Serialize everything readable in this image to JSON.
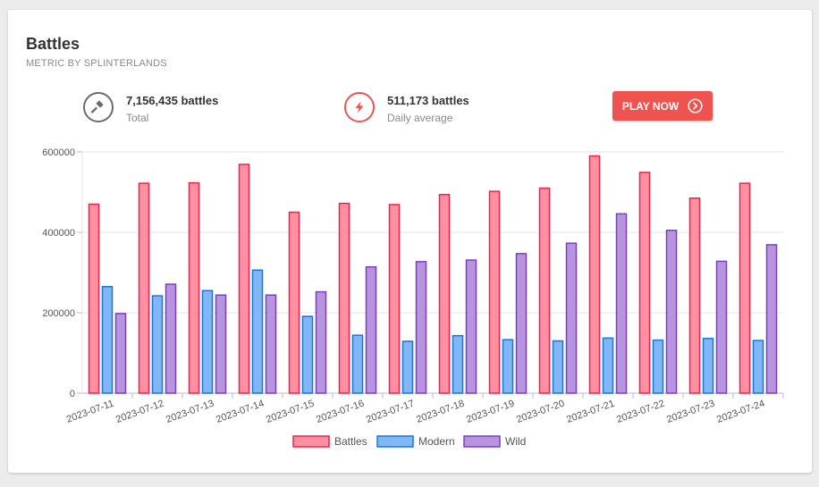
{
  "header": {
    "title": "Battles",
    "subtitle": "METRIC BY SPLINTERLANDS"
  },
  "stats": [
    {
      "icon": "hammer-icon",
      "value": "7,156,435 battles",
      "label": "Total",
      "color": "#666666"
    },
    {
      "icon": "lightning-icon",
      "value": "511,173 battles",
      "label": "Daily average",
      "color": "#ef5350"
    }
  ],
  "play_button": {
    "label": "PLAY NOW",
    "icon": "chevron-circle-right-icon",
    "color": "#ef5350"
  },
  "chart_data": {
    "type": "bar",
    "title": "",
    "xlabel": "",
    "ylabel": "",
    "ylim": [
      0,
      600000
    ],
    "yticks": [
      0,
      200000,
      400000,
      600000
    ],
    "grid": true,
    "legend_position": "bottom",
    "categories": [
      "2023-07-11",
      "2023-07-12",
      "2023-07-13",
      "2023-07-14",
      "2023-07-15",
      "2023-07-16",
      "2023-07-17",
      "2023-07-18",
      "2023-07-19",
      "2023-07-20",
      "2023-07-21",
      "2023-07-22",
      "2023-07-23",
      "2023-07-24"
    ],
    "series": [
      {
        "name": "Battles",
        "fill": "#ff8fa3",
        "stroke": "#e8274b",
        "values": [
          470000,
          522000,
          523000,
          569000,
          450000,
          472000,
          469000,
          494000,
          502000,
          510000,
          590000,
          549000,
          485000,
          522000
        ]
      },
      {
        "name": "Modern",
        "fill": "#80b8f5",
        "stroke": "#1f74d9",
        "values": [
          265000,
          242000,
          255000,
          306000,
          191000,
          144000,
          129000,
          143000,
          133000,
          130000,
          137000,
          132000,
          136000,
          131000
        ]
      },
      {
        "name": "Wild",
        "fill": "#b894e0",
        "stroke": "#7b3fbf",
        "values": [
          198000,
          271000,
          244000,
          244000,
          252000,
          314000,
          327000,
          331000,
          347000,
          373000,
          446000,
          405000,
          328000,
          369000
        ]
      }
    ]
  }
}
